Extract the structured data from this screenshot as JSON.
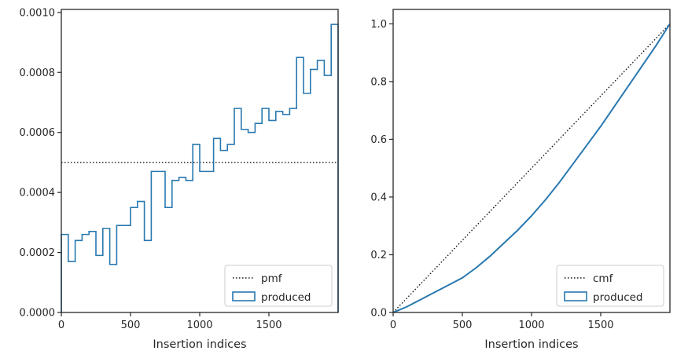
{
  "colors": {
    "produced": "#2878b0",
    "reference": "#111111",
    "axes": "#262626"
  },
  "chart_data": [
    {
      "type": "line",
      "subtype": "step-histogram",
      "xlabel": "Insertion indices",
      "ylabel": "",
      "xlim": [
        0,
        2000
      ],
      "ylim": [
        0,
        0.00101
      ],
      "xticks": [
        0,
        500,
        1000,
        1500
      ],
      "xtick_labels": [
        "0",
        "500",
        "1000",
        "1500"
      ],
      "yticks": [
        0,
        0.0002,
        0.0004,
        0.0006,
        0.0008,
        0.001
      ],
      "ytick_labels": [
        "0.0000",
        "0.0002",
        "0.0004",
        "0.0006",
        "0.0008",
        "0.0010"
      ],
      "grid": false,
      "legend_position": "lower-right",
      "series": [
        {
          "name": "pmf",
          "style": "dotted",
          "x": [
            0,
            2000
          ],
          "y": [
            0.0005,
            0.0005
          ]
        },
        {
          "name": "produced",
          "style": "step",
          "bin_edges": [
            0,
            50,
            100,
            150,
            200,
            250,
            300,
            350,
            400,
            500,
            550,
            600,
            650,
            750,
            800,
            850,
            900,
            950,
            1000,
            1100,
            1150,
            1200,
            1250,
            1300,
            1350,
            1400,
            1450,
            1500,
            1550,
            1600,
            1650,
            1700,
            1750,
            1800,
            1850,
            1900,
            1950,
            2000
          ],
          "values": [
            0.00026,
            0.00017,
            0.00024,
            0.00026,
            0.00027,
            0.00019,
            0.00028,
            0.00016,
            0.00029,
            0.00035,
            0.00037,
            0.00024,
            0.00047,
            0.00035,
            0.00044,
            0.00045,
            0.00044,
            0.00056,
            0.00047,
            0.00058,
            0.00054,
            0.00056,
            0.00068,
            0.00061,
            0.0006,
            0.00063,
            0.00068,
            0.00064,
            0.00067,
            0.00066,
            0.00068,
            0.00085,
            0.00073,
            0.00081,
            0.00084,
            0.00079,
            0.00096
          ]
        }
      ]
    },
    {
      "type": "line",
      "xlabel": "Insertion indices",
      "ylabel": "",
      "xlim": [
        0,
        2000
      ],
      "ylim": [
        0,
        1.05
      ],
      "xticks": [
        0,
        500,
        1000,
        1500
      ],
      "xtick_labels": [
        "0",
        "500",
        "1000",
        "1500"
      ],
      "yticks": [
        0,
        0.2,
        0.4,
        0.6,
        0.8,
        1.0
      ],
      "ytick_labels": [
        "0.0",
        "0.2",
        "0.4",
        "0.6",
        "0.8",
        "1.0"
      ],
      "grid": false,
      "legend_position": "lower-right",
      "series": [
        {
          "name": "cmf",
          "style": "dotted",
          "x": [
            0,
            2000
          ],
          "y": [
            0,
            1
          ]
        },
        {
          "name": "produced",
          "style": "solid",
          "x": [
            0,
            50,
            100,
            200,
            300,
            400,
            500,
            600,
            700,
            800,
            900,
            1000,
            1100,
            1200,
            1300,
            1400,
            1500,
            1600,
            1700,
            1800,
            1900,
            2000
          ],
          "y": [
            0,
            0.01,
            0.02,
            0.045,
            0.07,
            0.095,
            0.12,
            0.155,
            0.195,
            0.24,
            0.285,
            0.335,
            0.39,
            0.45,
            0.515,
            0.58,
            0.645,
            0.715,
            0.785,
            0.855,
            0.925,
            1.0
          ]
        }
      ]
    }
  ]
}
